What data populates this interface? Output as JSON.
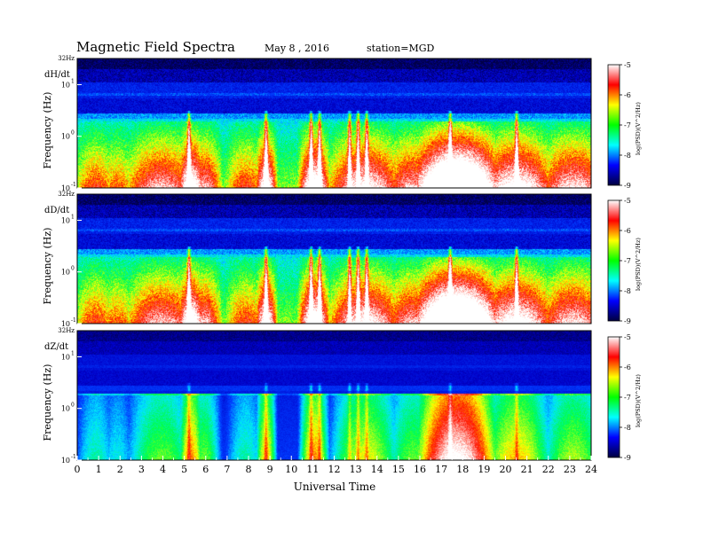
{
  "title": "Magnetic  Field  Spectra",
  "date": "May 8  , 2016",
  "station": "station=MGD",
  "xlabel": "Universal  Time",
  "colorbar": {
    "ticks": [
      "-5",
      "-6",
      "-7",
      "-8",
      "-9"
    ],
    "label": "log(PSD)(V^2/Hz)",
    "colors": [
      "#000040",
      "#0000ff",
      "#00ffff",
      "#00ff00",
      "#ffff00",
      "#ff0000",
      "#ffffff"
    ]
  },
  "chart_data": [
    {
      "type": "heatmap",
      "name": "dH/dt",
      "ylabel": "Frequency  (Hz)",
      "top_label": "32Hz",
      "y_tick_labels": [
        "10",
        "10",
        "10"
      ],
      "y_tick_exponents": [
        "1",
        "0",
        "-1"
      ],
      "x_ticks": [
        0,
        1,
        2,
        3,
        4,
        5,
        6,
        7,
        8,
        9,
        10,
        11,
        12,
        13,
        14,
        15,
        16,
        17,
        18,
        19,
        20,
        21,
        22,
        23,
        24
      ],
      "xlim": [
        0,
        24
      ],
      "ylim_hz": [
        0.1,
        32
      ],
      "ylog": true,
      "zlim": [
        -9,
        -5
      ],
      "grid": false
    },
    {
      "type": "heatmap",
      "name": "dD/dt",
      "ylabel": "Frequency  (Hz)",
      "top_label": "32Hz",
      "y_tick_labels": [
        "10",
        "10",
        "10"
      ],
      "y_tick_exponents": [
        "1",
        "0",
        "-1"
      ],
      "x_ticks": [
        0,
        1,
        2,
        3,
        4,
        5,
        6,
        7,
        8,
        9,
        10,
        11,
        12,
        13,
        14,
        15,
        16,
        17,
        18,
        19,
        20,
        21,
        22,
        23,
        24
      ],
      "xlim": [
        0,
        24
      ],
      "ylim_hz": [
        0.1,
        32
      ],
      "ylog": true,
      "zlim": [
        -9,
        -5
      ],
      "grid": false
    },
    {
      "type": "heatmap",
      "name": "dZ/dt",
      "ylabel": "Frequency  (Hz)",
      "top_label": "32Hz",
      "y_tick_labels": [
        "10",
        "10",
        "10"
      ],
      "y_tick_exponents": [
        "1",
        "0",
        "-1"
      ],
      "x_ticks": [
        0,
        1,
        2,
        3,
        4,
        5,
        6,
        7,
        8,
        9,
        10,
        11,
        12,
        13,
        14,
        15,
        16,
        17,
        18,
        19,
        20,
        21,
        22,
        23,
        24
      ],
      "xlim": [
        0,
        24
      ],
      "ylim_hz": [
        0.1,
        32
      ],
      "ylog": true,
      "zlim": [
        -9,
        -5
      ],
      "grid": false
    }
  ]
}
